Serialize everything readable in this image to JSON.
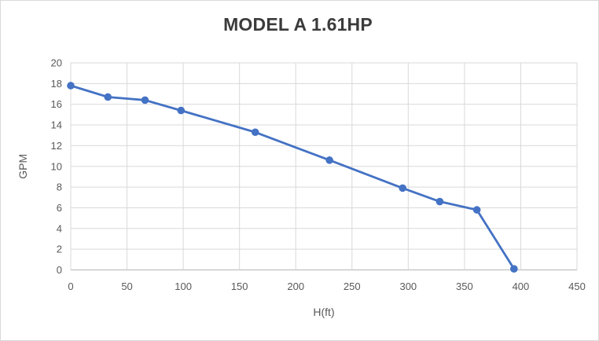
{
  "chart_data": {
    "type": "line",
    "title": "MODEL A 1.61HP",
    "xlabel": "H(ft)",
    "ylabel": "GPM",
    "x": [
      0,
      33,
      66,
      98,
      164,
      230,
      295,
      328,
      361,
      394
    ],
    "y": [
      17.8,
      16.7,
      16.4,
      15.4,
      13.3,
      10.6,
      7.9,
      6.6,
      5.8,
      0.1
    ],
    "series_name": "",
    "xlim": [
      0,
      450
    ],
    "ylim": [
      0,
      20
    ],
    "xticks": [
      0,
      50,
      100,
      150,
      200,
      250,
      300,
      350,
      400,
      450
    ],
    "yticks": [
      0,
      2,
      4,
      6,
      8,
      10,
      12,
      14,
      16,
      18,
      20
    ],
    "grid": true,
    "legend": false,
    "marker": "circle",
    "colors": {
      "series": "#4472C4",
      "gridline": "#D9D9D9",
      "axis_line": "#BFBFBF",
      "tick_label": "#595959",
      "title": "#3B3B3B",
      "background": "#FFFFFF",
      "border": "#D9D9D9"
    }
  }
}
